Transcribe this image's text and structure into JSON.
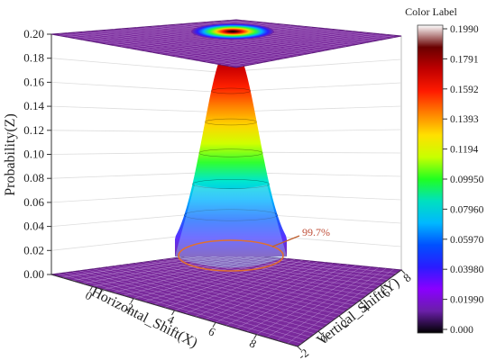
{
  "chart_data": {
    "type": "surface3d",
    "zlabel": "Probability(Z)",
    "xlabel": "Horizontal_Shift(X)",
    "ylabel": "Vertical_Shift(Y)",
    "z_ticks": [
      "0.00",
      "0.02",
      "0.04",
      "0.06",
      "0.08",
      "0.10",
      "0.12",
      "0.14",
      "0.16",
      "0.18",
      "0.20"
    ],
    "zlim": [
      0,
      0.2
    ],
    "x_ticks": [
      "0",
      "2",
      "4",
      "6",
      "8"
    ],
    "y_ticks": [
      "-2",
      "0",
      "2",
      "4",
      "6",
      "8"
    ],
    "xlim": [
      -2,
      10
    ],
    "ylim": [
      -2,
      8
    ],
    "peak": {
      "x": 4,
      "y": 3,
      "z": 0.199
    },
    "annotation": "99.7%",
    "colorbar": {
      "title": "Color Label",
      "ticks": [
        "0.1990",
        "0.1791",
        "0.1592",
        "0.1393",
        "0.1194",
        "0.09950",
        "0.07960",
        "0.05970",
        "0.03980",
        "0.01990",
        "0.000"
      ],
      "colors": [
        "#000000",
        "#6a1fa8",
        "#8a00ff",
        "#2a1cff",
        "#0050ff",
        "#00b8ff",
        "#00e0c0",
        "#20ff20",
        "#c8ff00",
        "#ffe000",
        "#ff8000",
        "#ff1a00",
        "#c00000",
        "#6a0000",
        "#ffffff"
      ]
    },
    "grid": true
  }
}
